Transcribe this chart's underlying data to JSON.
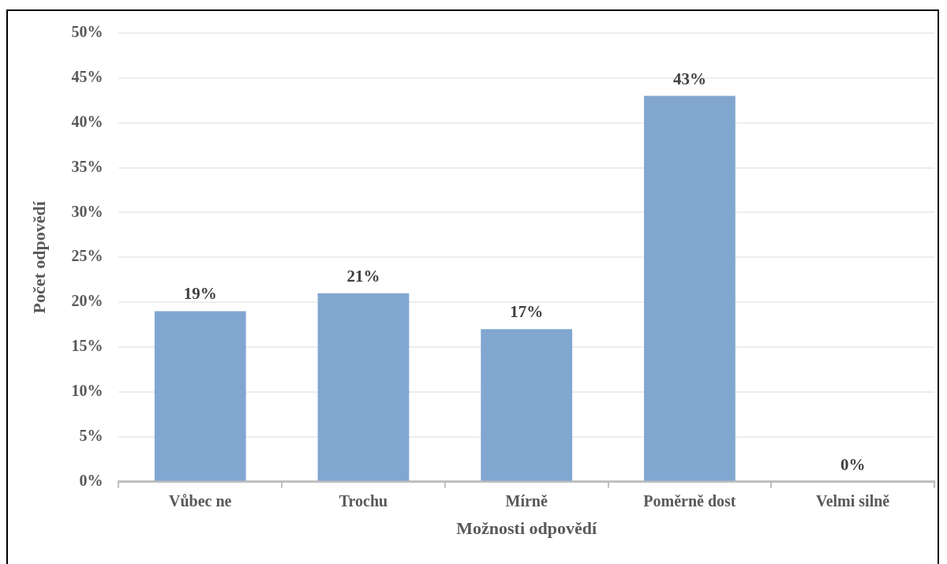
{
  "chart_data": {
    "type": "bar",
    "xlabel": "Možnosti odpovědí",
    "ylabel": "Počet odpovědí",
    "categories": [
      "Vůbec ne",
      "Trochu",
      "Mírně",
      "Poměrně dost",
      "Velmi silně"
    ],
    "values": [
      19,
      21,
      17,
      43,
      0
    ],
    "value_labels": [
      "19%",
      "21%",
      "17%",
      "43%",
      "0%"
    ],
    "color": "#81a6d0",
    "ylim": [
      0,
      50
    ],
    "yticks": [
      {
        "value": 0,
        "label": "0%"
      },
      {
        "value": 5,
        "label": "5%"
      },
      {
        "value": 10,
        "label": "10%"
      },
      {
        "value": 15,
        "label": "15%"
      },
      {
        "value": 20,
        "label": "20%"
      },
      {
        "value": 25,
        "label": "25%"
      },
      {
        "value": 30,
        "label": "30%"
      },
      {
        "value": 35,
        "label": "35%"
      },
      {
        "value": 40,
        "label": "40%"
      },
      {
        "value": 45,
        "label": "45%"
      },
      {
        "value": 50,
        "label": "50%"
      }
    ],
    "grid": "y"
  }
}
